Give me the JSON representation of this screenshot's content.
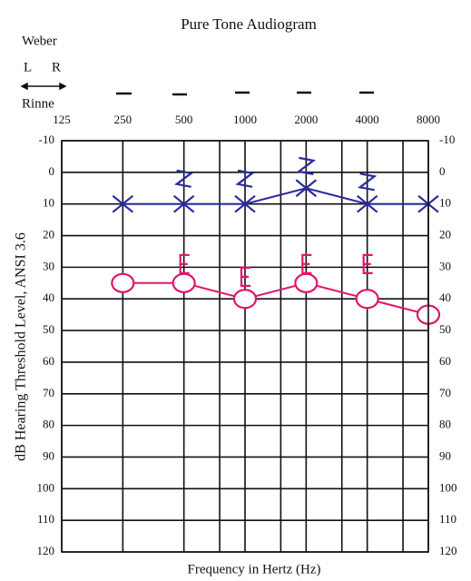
{
  "chart_data": {
    "type": "audiogram",
    "title": "Pure Tone Audiogram",
    "weber_label": "Weber",
    "left_label": "L",
    "right_label": "R",
    "rinne_label": "Rinne",
    "xlabel": "Frequency in Hertz (Hz)",
    "ylabel": "dB Hearing Threshold Level, ANSI 3.6",
    "xscale": "log",
    "xlim": [
      125,
      8000
    ],
    "xticks": [
      125,
      250,
      500,
      1000,
      2000,
      4000,
      8000
    ],
    "minor_xticks": [
      750,
      1500,
      3000,
      6000
    ],
    "ylim": [
      -10,
      120
    ],
    "yticks": [
      -10,
      0,
      10,
      20,
      30,
      40,
      50,
      60,
      70,
      80,
      90,
      100,
      110,
      120
    ],
    "y_inverted": true,
    "grid": true,
    "series": [
      {
        "marker": "x",
        "color": "#2a2a9e",
        "connect": true,
        "x": [
          250,
          500,
          1000,
          2000,
          4000,
          8000
        ],
        "values": [
          10,
          10,
          10,
          5,
          10,
          10
        ]
      },
      {
        "marker": "greater",
        "color": "#2a2a9e",
        "connect": false,
        "x": [
          500,
          1000,
          2000,
          4000
        ],
        "values": [
          2,
          2,
          -2,
          3
        ]
      },
      {
        "marker": "o",
        "color": "#e0156a",
        "connect": true,
        "x": [
          250,
          500,
          1000,
          2000,
          4000,
          8000
        ],
        "values": [
          35,
          35,
          40,
          35,
          40,
          45
        ]
      },
      {
        "marker": "bracket",
        "color": "#e0156a",
        "connect": false,
        "x": [
          500,
          1000,
          2000,
          4000
        ],
        "values": [
          29,
          33,
          29,
          29
        ]
      }
    ]
  }
}
